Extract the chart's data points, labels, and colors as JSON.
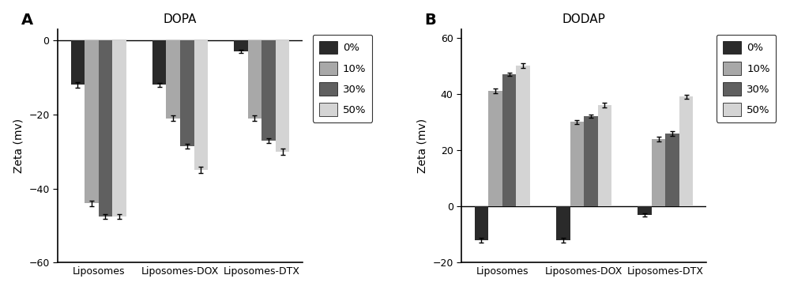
{
  "panel_A_title": "DOPA",
  "panel_B_title": "DODAP",
  "panel_A_label": "A",
  "panel_B_label": "B",
  "ylabel": "Zeta (mv)",
  "categories": [
    "Liposomes",
    "Liposomes-DOX",
    "Liposomes-DTX"
  ],
  "legend_labels": [
    "0%",
    "10%",
    "30%",
    "50%"
  ],
  "bar_colors": [
    "#2a2a2a",
    "#a8a8a8",
    "#606060",
    "#d4d4d4"
  ],
  "panel_A_values": [
    [
      -12.0,
      -44.0,
      -47.5,
      -47.5
    ],
    [
      -12.0,
      -21.0,
      -28.5,
      -35.0
    ],
    [
      -3.0,
      -21.0,
      -27.0,
      -30.0
    ]
  ],
  "panel_A_errors": [
    [
      0.8,
      0.8,
      0.6,
      0.6
    ],
    [
      0.5,
      0.7,
      0.6,
      0.8
    ],
    [
      0.5,
      0.8,
      0.6,
      0.8
    ]
  ],
  "panel_B_values": [
    [
      -12.0,
      41.0,
      47.0,
      50.0
    ],
    [
      -12.0,
      30.0,
      32.0,
      36.0
    ],
    [
      -3.0,
      24.0,
      26.0,
      39.0
    ]
  ],
  "panel_B_errors": [
    [
      0.8,
      0.8,
      0.6,
      0.8
    ],
    [
      0.8,
      0.6,
      0.6,
      0.8
    ],
    [
      0.5,
      0.8,
      0.8,
      0.8
    ]
  ],
  "panel_A_ylim": [
    -60,
    3
  ],
  "panel_A_yticks": [
    0,
    -20,
    -40,
    -60
  ],
  "panel_B_ylim": [
    -20,
    63
  ],
  "panel_B_yticks": [
    -20,
    0,
    20,
    40,
    60
  ],
  "bar_width": 0.17,
  "figsize": [
    10.0,
    3.67
  ],
  "dpi": 100
}
